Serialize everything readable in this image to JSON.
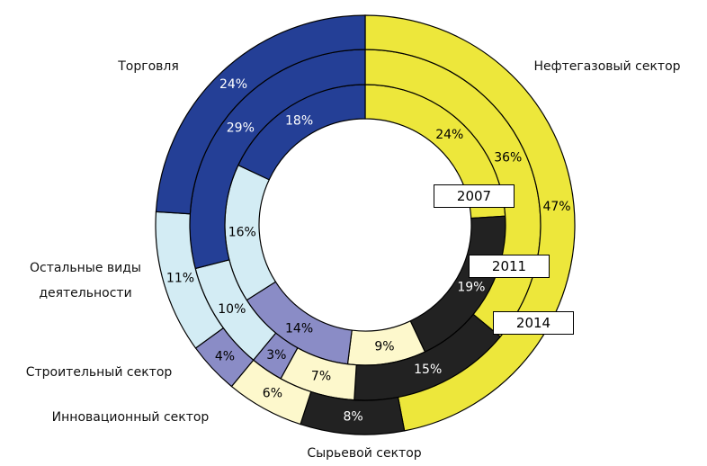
{
  "chart_data": {
    "type": "donut",
    "categories": [
      "Нефтегазовый сектор",
      "Сырьевой сектор",
      "Инновационный сектор",
      "Строительный сектор",
      "Остальные виды деятельности",
      "Торговля"
    ],
    "colors": [
      "#ede73b",
      "#222222",
      "#fdf8cc",
      "#8a8cc6",
      "#d3ecf4",
      "#243f96"
    ],
    "series": [
      {
        "name": "2007",
        "values": [
          24,
          19,
          9,
          14,
          16,
          18
        ],
        "value_labels": [
          "24%",
          "19%",
          "9%",
          "14%",
          "16%",
          "18%"
        ]
      },
      {
        "name": "2011",
        "values": [
          36,
          15,
          7,
          3,
          10,
          29
        ],
        "value_labels": [
          "36%",
          "15%",
          "7%",
          "3%",
          "10%",
          "29%"
        ]
      },
      {
        "name": "2014",
        "values": [
          47,
          8,
          6,
          4,
          11,
          24
        ],
        "value_labels": [
          "47%",
          "8%",
          "6%",
          "4%",
          "11%",
          "24%"
        ]
      }
    ]
  }
}
